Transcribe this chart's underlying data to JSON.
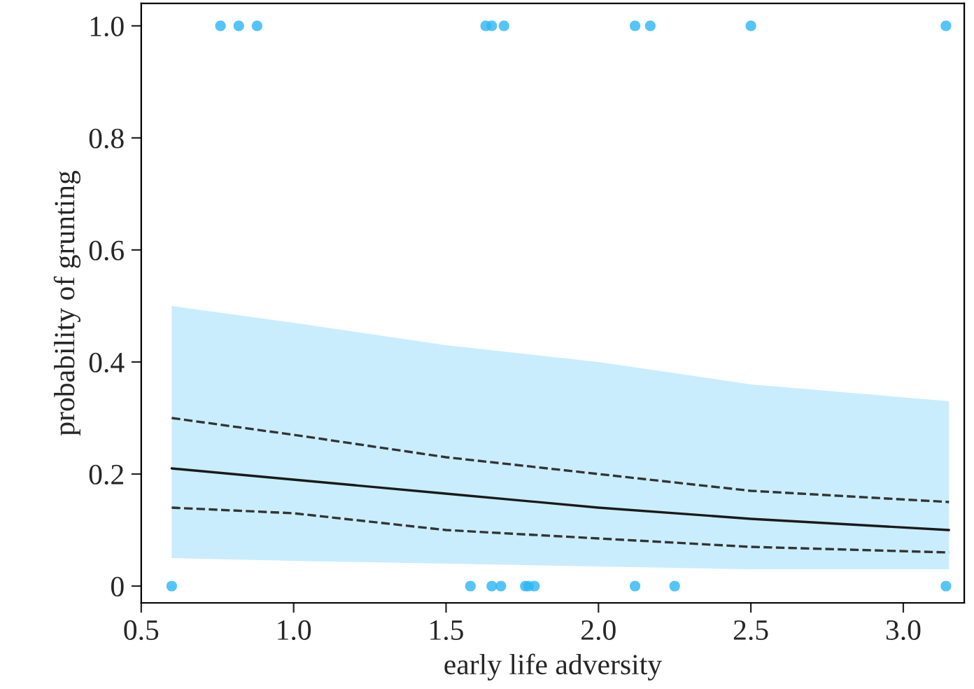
{
  "chart_data": {
    "type": "scatter",
    "xlabel": "early life adversity",
    "ylabel": "probability of grunting",
    "xlim": [
      0.5,
      3.2
    ],
    "ylim": [
      -0.03,
      1.04
    ],
    "xticks": [
      {
        "value": 0.5,
        "label": "0.5"
      },
      {
        "value": 1.0,
        "label": "1.0"
      },
      {
        "value": 1.5,
        "label": "1.5"
      },
      {
        "value": 2.0,
        "label": "2.0"
      },
      {
        "value": 2.5,
        "label": "2.5"
      },
      {
        "value": 3.0,
        "label": "3.0"
      }
    ],
    "yticks": [
      {
        "value": 0,
        "label": "0"
      },
      {
        "value": 0.2,
        "label": "0.2"
      },
      {
        "value": 0.4,
        "label": "0.4"
      },
      {
        "value": 0.6,
        "label": "0.6"
      },
      {
        "value": 0.8,
        "label": "0.8"
      },
      {
        "value": 1.0,
        "label": "1.0"
      }
    ],
    "grid": false,
    "legend": false,
    "series": [
      {
        "color": "#29b6f6",
        "marker": "circle",
        "x": [
          0.76,
          0.82,
          0.88,
          1.63,
          1.65,
          1.69,
          2.12,
          2.17,
          2.5,
          3.14,
          0.6,
          1.58,
          1.65,
          1.68,
          1.76,
          1.77,
          1.79,
          2.12,
          2.25,
          3.14
        ],
        "values": [
          1,
          1,
          1,
          1,
          1,
          1,
          1,
          1,
          1,
          1,
          0,
          0,
          0,
          0,
          0,
          0,
          0,
          0,
          0,
          0
        ]
      },
      {
        "type": "line",
        "color": "#1a1a1a",
        "line_style": "solid",
        "x": [
          0.6,
          1.0,
          1.5,
          2.0,
          2.5,
          3.15
        ],
        "values": [
          0.21,
          0.19,
          0.165,
          0.14,
          0.12,
          0.1
        ],
        "lower": [
          0.05,
          0.045,
          0.04,
          0.035,
          0.03,
          0.03
        ],
        "upper": [
          0.5,
          0.47,
          0.43,
          0.4,
          0.36,
          0.33
        ]
      },
      {
        "type": "line",
        "color": "#333333",
        "line_style": "dashed",
        "x": [
          0.6,
          1.0,
          1.5,
          2.0,
          2.5,
          3.15
        ],
        "values": [
          0.3,
          0.27,
          0.23,
          0.2,
          0.17,
          0.15
        ]
      },
      {
        "type": "line",
        "color": "#333333",
        "line_style": "dashed",
        "x": [
          0.6,
          1.0,
          1.5,
          2.0,
          2.5,
          3.15
        ],
        "values": [
          0.14,
          0.13,
          0.1,
          0.085,
          0.07,
          0.06
        ]
      }
    ]
  }
}
